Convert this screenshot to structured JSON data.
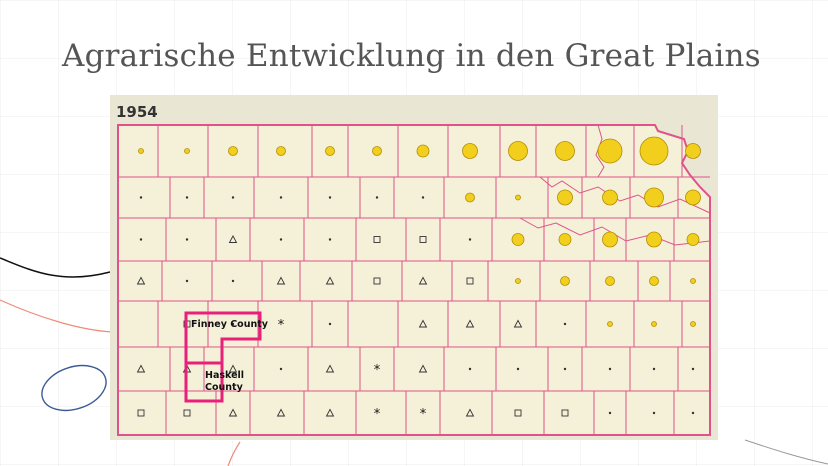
{
  "slide": {
    "title": "Agrarische Entwicklung in den Great Plains"
  },
  "map": {
    "year": "1954",
    "labels": {
      "finney": "Finney County",
      "haskell_line1": "Haskell",
      "haskell_line2": "County"
    },
    "colors": {
      "background": "#f4f1d8",
      "county_border": "#e0528a",
      "highlight_border": "#e8207a",
      "circle_fill": "#f2cf1c",
      "circle_stroke": "#b38d00",
      "symbol": "#333333"
    },
    "symbols": [
      {
        "type": "circle",
        "size": 1,
        "row": 0,
        "col": 0
      },
      {
        "type": "circle",
        "size": 1,
        "row": 0,
        "col": 1
      },
      {
        "type": "circle",
        "size": 2,
        "row": 0,
        "col": 2
      },
      {
        "type": "circle",
        "size": 2,
        "row": 0,
        "col": 3
      },
      {
        "type": "circle",
        "size": 2,
        "row": 0,
        "col": 4
      },
      {
        "type": "circle",
        "size": 2,
        "row": 0,
        "col": 5
      },
      {
        "type": "circle",
        "size": 3,
        "row": 0,
        "col": 6
      },
      {
        "type": "circle",
        "size": 4,
        "row": 0,
        "col": 7
      },
      {
        "type": "circle",
        "size": 5,
        "row": 0,
        "col": 8
      },
      {
        "type": "circle",
        "size": 5,
        "row": 0,
        "col": 9
      },
      {
        "type": "circle",
        "size": 6,
        "row": 0,
        "col": 10
      },
      {
        "type": "circle",
        "size": 7,
        "row": 0,
        "col": 11
      },
      {
        "type": "circle",
        "size": 4,
        "row": 0,
        "col": 12
      },
      {
        "type": "dot",
        "row": 1,
        "col": 0
      },
      {
        "type": "dot",
        "row": 1,
        "col": 1
      },
      {
        "type": "dot",
        "row": 1,
        "col": 2
      },
      {
        "type": "dot",
        "row": 1,
        "col": 3
      },
      {
        "type": "dot",
        "row": 1,
        "col": 4
      },
      {
        "type": "dot",
        "row": 1,
        "col": 5
      },
      {
        "type": "dot",
        "row": 1,
        "col": 6
      },
      {
        "type": "circle",
        "size": 2,
        "row": 1,
        "col": 7
      },
      {
        "type": "circle",
        "size": 1,
        "row": 1,
        "col": 8
      },
      {
        "type": "circle",
        "size": 4,
        "row": 1,
        "col": 9
      },
      {
        "type": "circle",
        "size": 4,
        "row": 1,
        "col": 10
      },
      {
        "type": "circle",
        "size": 5,
        "row": 1,
        "col": 11
      },
      {
        "type": "circle",
        "size": 4,
        "row": 1,
        "col": 12
      },
      {
        "type": "dot",
        "row": 2,
        "col": 0
      },
      {
        "type": "dot",
        "row": 2,
        "col": 1
      },
      {
        "type": "triangle",
        "row": 2,
        "col": 2
      },
      {
        "type": "dot",
        "row": 2,
        "col": 3
      },
      {
        "type": "dot",
        "row": 2,
        "col": 4
      },
      {
        "type": "square",
        "row": 2,
        "col": 5
      },
      {
        "type": "square",
        "row": 2,
        "col": 6
      },
      {
        "type": "dot",
        "row": 2,
        "col": 7
      },
      {
        "type": "circle",
        "size": 3,
        "row": 2,
        "col": 8
      },
      {
        "type": "circle",
        "size": 3,
        "row": 2,
        "col": 9
      },
      {
        "type": "circle",
        "size": 4,
        "row": 2,
        "col": 10
      },
      {
        "type": "circle",
        "size": 4,
        "row": 2,
        "col": 11
      },
      {
        "type": "circle",
        "size": 3,
        "row": 2,
        "col": 12
      },
      {
        "type": "triangle",
        "row": 3,
        "col": 0
      },
      {
        "type": "dot",
        "row": 3,
        "col": 1
      },
      {
        "type": "dot",
        "row": 3,
        "col": 2
      },
      {
        "type": "triangle",
        "row": 3,
        "col": 3
      },
      {
        "type": "triangle",
        "row": 3,
        "col": 4
      },
      {
        "type": "square",
        "row": 3,
        "col": 5
      },
      {
        "type": "triangle",
        "row": 3,
        "col": 6
      },
      {
        "type": "square",
        "row": 3,
        "col": 7
      },
      {
        "type": "circle",
        "size": 1,
        "row": 3,
        "col": 8
      },
      {
        "type": "circle",
        "size": 2,
        "row": 3,
        "col": 9
      },
      {
        "type": "circle",
        "size": 2,
        "row": 3,
        "col": 10
      },
      {
        "type": "circle",
        "size": 2,
        "row": 3,
        "col": 11
      },
      {
        "type": "circle",
        "size": 1,
        "row": 3,
        "col": 12
      },
      {
        "type": "square",
        "row": 4,
        "col": 1
      },
      {
        "type": "dot",
        "row": 4,
        "col": 2
      },
      {
        "type": "star",
        "row": 4,
        "col": 3
      },
      {
        "type": "dot",
        "row": 4,
        "col": 4
      },
      {
        "type": "triangle",
        "row": 4,
        "col": 6
      },
      {
        "type": "triangle",
        "row": 4,
        "col": 7
      },
      {
        "type": "triangle",
        "row": 4,
        "col": 8
      },
      {
        "type": "dot",
        "row": 4,
        "col": 9
      },
      {
        "type": "circle",
        "size": 1,
        "row": 4,
        "col": 10
      },
      {
        "type": "circle",
        "size": 1,
        "row": 4,
        "col": 11
      },
      {
        "type": "circle",
        "size": 1,
        "row": 4,
        "col": 12
      },
      {
        "type": "triangle",
        "row": 5,
        "col": 0
      },
      {
        "type": "triangle",
        "row": 5,
        "col": 1
      },
      {
        "type": "triangle",
        "row": 5,
        "col": 2
      },
      {
        "type": "dot",
        "row": 5,
        "col": 3
      },
      {
        "type": "triangle",
        "row": 5,
        "col": 4
      },
      {
        "type": "star",
        "row": 5,
        "col": 5
      },
      {
        "type": "triangle",
        "row": 5,
        "col": 6
      },
      {
        "type": "dot",
        "row": 5,
        "col": 7
      },
      {
        "type": "dot",
        "row": 5,
        "col": 8
      },
      {
        "type": "dot",
        "row": 5,
        "col": 9
      },
      {
        "type": "dot",
        "row": 5,
        "col": 10
      },
      {
        "type": "dot",
        "row": 5,
        "col": 11
      },
      {
        "type": "dot",
        "row": 5,
        "col": 12
      },
      {
        "type": "square",
        "row": 6,
        "col": 0
      },
      {
        "type": "square",
        "row": 6,
        "col": 1
      },
      {
        "type": "triangle",
        "row": 6,
        "col": 2
      },
      {
        "type": "triangle",
        "row": 6,
        "col": 3
      },
      {
        "type": "triangle",
        "row": 6,
        "col": 4
      },
      {
        "type": "star",
        "row": 6,
        "col": 5
      },
      {
        "type": "star",
        "row": 6,
        "col": 6
      },
      {
        "type": "triangle",
        "row": 6,
        "col": 7
      },
      {
        "type": "square",
        "row": 6,
        "col": 8
      },
      {
        "type": "square",
        "row": 6,
        "col": 9
      },
      {
        "type": "dot",
        "row": 6,
        "col": 10
      },
      {
        "type": "dot",
        "row": 6,
        "col": 11
      },
      {
        "type": "dot",
        "row": 6,
        "col": 12
      }
    ]
  }
}
